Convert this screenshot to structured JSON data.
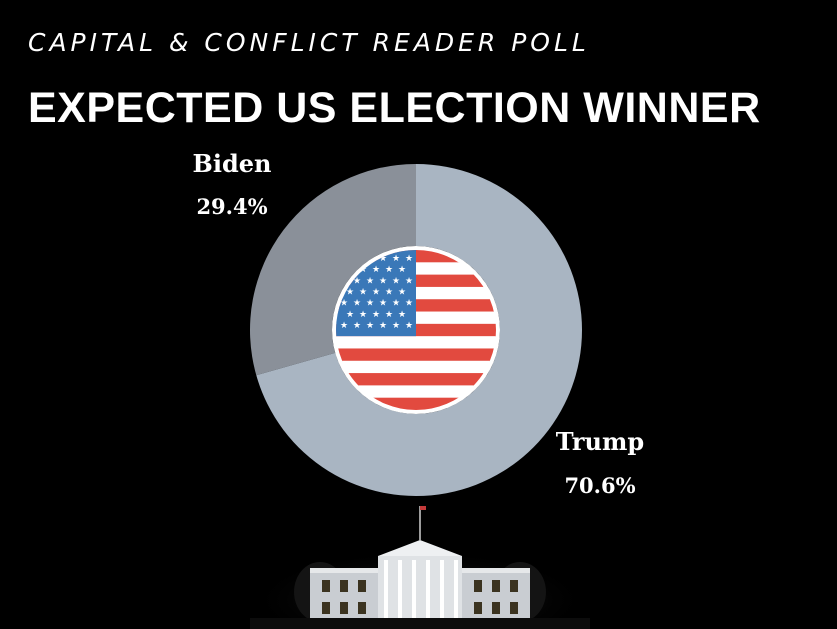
{
  "header": {
    "subtitle": "CAPITAL & CONFLICT READER POLL",
    "title": "EXPECTED US ELECTION WINNER"
  },
  "chart_data": {
    "type": "pie",
    "style": "donut",
    "title": "EXPECTED US ELECTION WINNER",
    "subtitle": "CAPITAL & CONFLICT READER POLL",
    "categories": [
      "Biden",
      "Trump"
    ],
    "values": [
      29.4,
      70.6
    ],
    "value_labels": [
      "29.4%",
      "70.6%"
    ],
    "colors": [
      "#8a9099",
      "#a9b5c2"
    ],
    "center_icon": "us-flag-icon"
  },
  "colors": {
    "background": "#000000",
    "text": "#ffffff",
    "flag_red": "#e24a3f",
    "flag_blue": "#3a78b8",
    "flag_white": "#ffffff"
  },
  "decor": {
    "bottom_image": "white-house-night-icon"
  }
}
